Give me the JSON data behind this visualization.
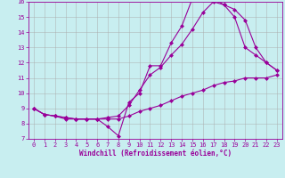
{
  "xlabel": "Windchill (Refroidissement éolien,°C)",
  "xlim": [
    -0.5,
    23.5
  ],
  "ylim": [
    7,
    16
  ],
  "xticks": [
    0,
    1,
    2,
    3,
    4,
    5,
    6,
    7,
    8,
    9,
    10,
    11,
    12,
    13,
    14,
    15,
    16,
    17,
    18,
    19,
    20,
    21,
    22,
    23
  ],
  "yticks": [
    7,
    8,
    9,
    10,
    11,
    12,
    13,
    14,
    15,
    16
  ],
  "bg_color": "#c8eef0",
  "line_color": "#990099",
  "grid_color": "#aaaaaa",
  "line1_x": [
    0,
    1,
    2,
    3,
    4,
    5,
    6,
    7,
    8,
    9,
    10,
    11,
    12,
    13,
    14,
    15,
    16,
    17,
    18,
    19,
    20,
    21,
    22,
    23
  ],
  "line1_y": [
    9.0,
    8.6,
    8.5,
    8.3,
    8.3,
    8.3,
    8.3,
    7.8,
    7.2,
    9.4,
    10.0,
    11.8,
    11.8,
    13.3,
    14.4,
    16.2,
    16.2,
    16.2,
    15.8,
    15.0,
    13.0,
    12.5,
    12.0,
    11.5
  ],
  "line2_x": [
    0,
    1,
    2,
    3,
    4,
    5,
    6,
    7,
    8,
    9,
    10,
    11,
    12,
    13,
    14,
    15,
    16,
    17,
    18,
    19,
    20,
    21,
    22,
    23
  ],
  "line2_y": [
    9.0,
    8.6,
    8.5,
    8.4,
    8.3,
    8.3,
    8.3,
    8.4,
    8.5,
    9.2,
    10.2,
    11.2,
    11.7,
    12.5,
    13.2,
    14.2,
    15.3,
    16.0,
    15.8,
    15.5,
    14.8,
    13.0,
    12.0,
    11.5
  ],
  "line3_x": [
    0,
    1,
    2,
    3,
    4,
    5,
    6,
    7,
    8,
    9,
    10,
    11,
    12,
    13,
    14,
    15,
    16,
    17,
    18,
    19,
    20,
    21,
    22,
    23
  ],
  "line3_y": [
    9.0,
    8.6,
    8.5,
    8.4,
    8.3,
    8.3,
    8.3,
    8.3,
    8.3,
    8.5,
    8.8,
    9.0,
    9.2,
    9.5,
    9.8,
    10.0,
    10.2,
    10.5,
    10.7,
    10.8,
    11.0,
    11.0,
    11.0,
    11.2
  ],
  "markersize": 2.5,
  "linewidth": 0.8,
  "tick_fontsize": 5,
  "label_fontsize": 5.5
}
